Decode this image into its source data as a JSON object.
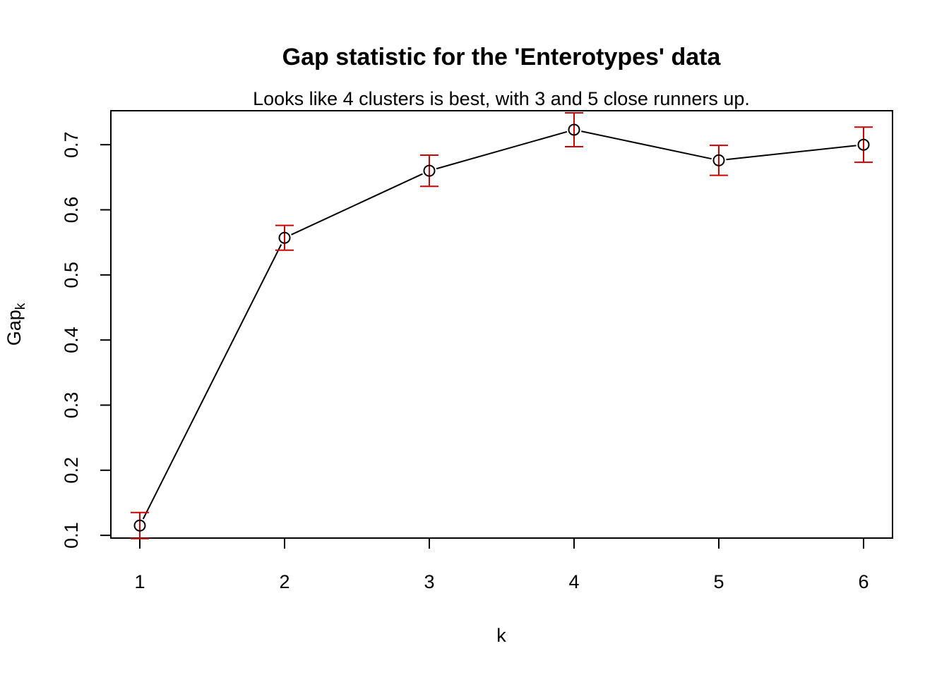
{
  "chart_data": {
    "type": "line",
    "title": "Gap statistic for the 'Enterotypes' data",
    "subtitle": "Looks like 4 clusters is best, with 3 and 5 close runners up.",
    "xlabel": "k",
    "ylabel": "Gap",
    "ylabel_subscript": "k",
    "x": [
      1,
      2,
      3,
      4,
      5,
      6
    ],
    "series": [
      {
        "values": [
          0.115,
          0.557,
          0.66,
          0.723,
          0.676,
          0.7
        ],
        "error": [
          0.02,
          0.019,
          0.024,
          0.026,
          0.023,
          0.027
        ]
      }
    ],
    "xticks": [
      1,
      2,
      3,
      4,
      5,
      6
    ],
    "yticks": [
      0.1,
      0.2,
      0.3,
      0.4,
      0.5,
      0.6,
      0.7
    ],
    "xlim": [
      0.8,
      6.2
    ],
    "ylim": [
      0.0958,
      0.7522
    ],
    "grid": false,
    "colors": {
      "line": "#000000",
      "points": "#000000",
      "error_bars": "#cc0000"
    }
  }
}
